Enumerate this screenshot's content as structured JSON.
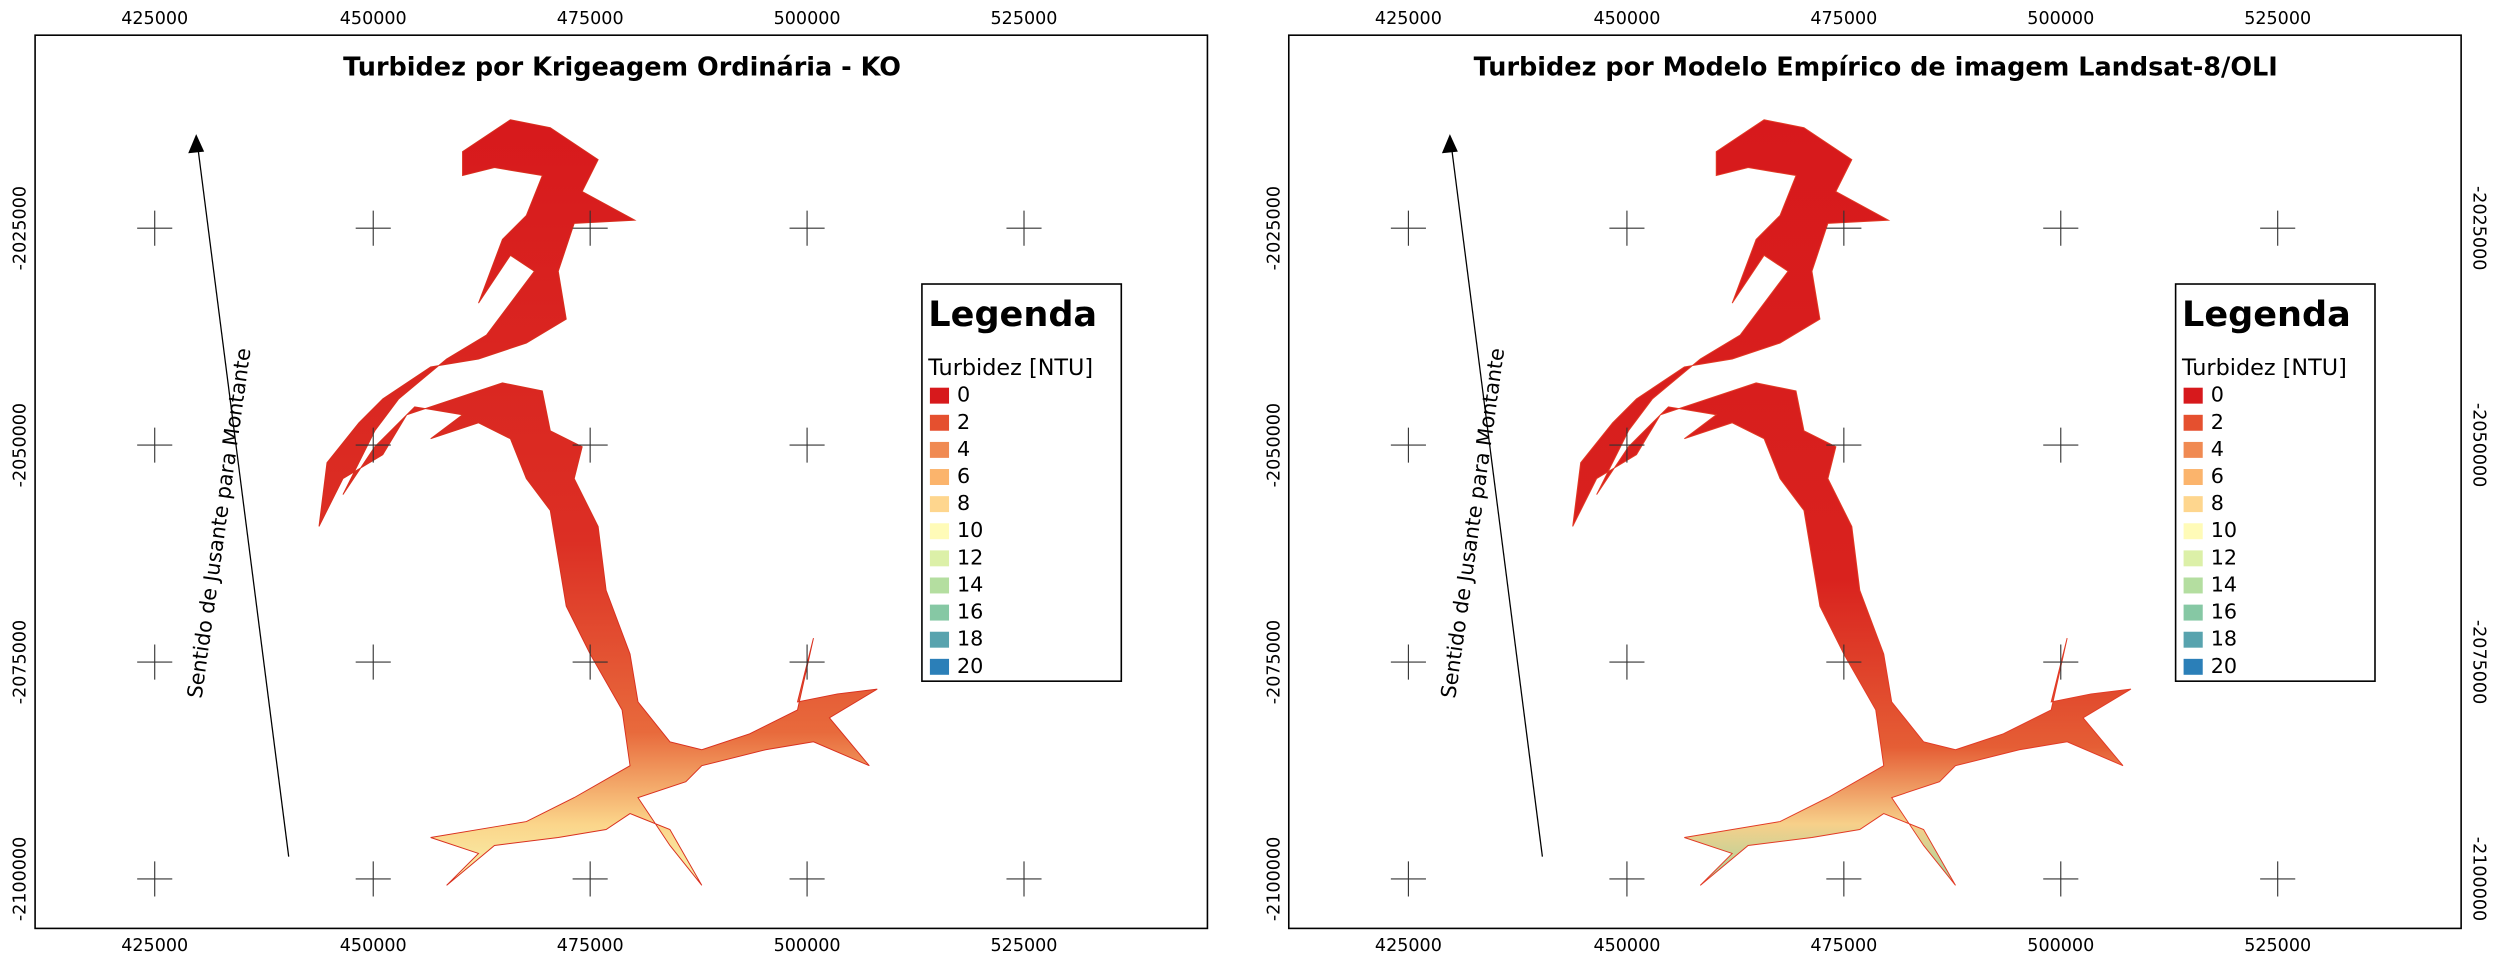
{
  "panels": [
    {
      "title": "Turbidez por Krigeagem Ordinária - KO",
      "x_ticks": [
        "425000",
        "450000",
        "475000",
        "500000",
        "525000"
      ],
      "y_ticks": [
        "-2025000",
        "-2050000",
        "-2075000",
        "-2100000"
      ],
      "annotation": "Sentido de Jusante para Montante",
      "legend": {
        "title": "Legenda",
        "subtitle": "Turbidez [NTU]",
        "items": [
          {
            "label": "0",
            "color": "#d7191c"
          },
          {
            "label": "2",
            "color": "#e5502f"
          },
          {
            "label": "4",
            "color": "#f08a52"
          },
          {
            "label": "6",
            "color": "#fbb46c"
          },
          {
            "label": "8",
            "color": "#fed68e"
          },
          {
            "label": "10",
            "color": "#fffbb8"
          },
          {
            "label": "12",
            "color": "#dcf0a8"
          },
          {
            "label": "14",
            "color": "#b4dea0"
          },
          {
            "label": "16",
            "color": "#86c8a4"
          },
          {
            "label": "18",
            "color": "#58a3ae"
          },
          {
            "label": "20",
            "color": "#2b7fb8"
          }
        ]
      }
    },
    {
      "title": "Turbidez por Modelo Empírico de imagem Landsat-8/OLI",
      "x_ticks": [
        "425000",
        "450000",
        "475000",
        "500000",
        "525000"
      ],
      "y_ticks": [
        "-2025000",
        "-2050000",
        "-2075000",
        "-2100000"
      ],
      "annotation": "Sentido de Jusante para Montante",
      "legend": {
        "title": "Legenda",
        "subtitle": "Turbidez [NTU]",
        "items": [
          {
            "label": "0",
            "color": "#d7191c"
          },
          {
            "label": "2",
            "color": "#e5502f"
          },
          {
            "label": "4",
            "color": "#f08a52"
          },
          {
            "label": "6",
            "color": "#fbb46c"
          },
          {
            "label": "8",
            "color": "#fed68e"
          },
          {
            "label": "10",
            "color": "#fffbb8"
          },
          {
            "label": "12",
            "color": "#dcf0a8"
          },
          {
            "label": "14",
            "color": "#b4dea0"
          },
          {
            "label": "16",
            "color": "#86c8a4"
          },
          {
            "label": "18",
            "color": "#58a3ae"
          },
          {
            "label": "20",
            "color": "#2b7fb8"
          }
        ]
      }
    }
  ]
}
